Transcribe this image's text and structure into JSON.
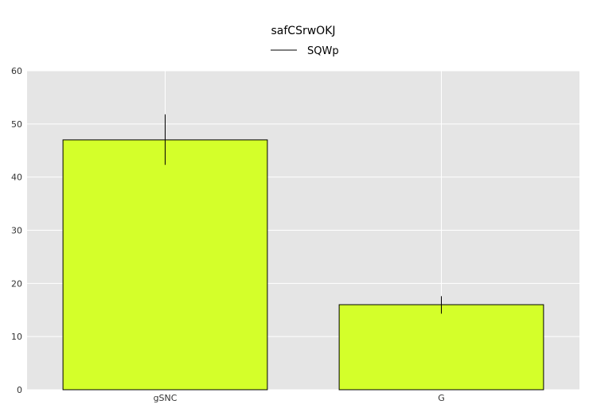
{
  "chart_data": {
    "type": "bar",
    "title": "safCSrwOKJ",
    "legend": {
      "label": "SQWp",
      "placement": "top-center"
    },
    "categories": [
      "gSNC",
      "G"
    ],
    "values": [
      47,
      16
    ],
    "error_low": [
      42.3,
      14.3
    ],
    "error_high": [
      51.8,
      17.6
    ],
    "xlabel": "",
    "ylabel": "",
    "ylim": [
      0,
      60
    ],
    "yticks": [
      "0",
      "10",
      "20",
      "30",
      "40",
      "50",
      "60"
    ],
    "grid": true,
    "colors": {
      "bar": "#d4ff2a",
      "bar_edge": "#000000",
      "plot_bg": "#e5e5e5",
      "grid": "#ffffff",
      "error": "#000000"
    }
  }
}
